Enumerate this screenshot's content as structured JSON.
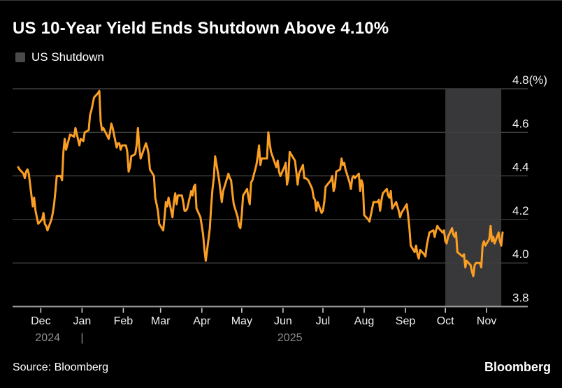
{
  "header": {
    "title": "US 10-Year Yield Ends Shutdown Above 4.10%"
  },
  "legend": {
    "items": [
      {
        "label": "US Shutdown",
        "swatch_color": "#4a4a4d"
      }
    ]
  },
  "footer": {
    "source": "Source: Bloomberg",
    "brand": "Bloomberg"
  },
  "colors": {
    "background": "#000000",
    "title_text": "#ffffff",
    "axis_label_text": "#f0f0f0",
    "year_label_text": "#8f8f8f",
    "gridline": "#3e3e3e",
    "axis_line": "#9a9a9a",
    "tick_mark": "#cccccc",
    "shutdown_band": "#38383b",
    "line": "#fb9e24",
    "footer_text": "#ffffff"
  },
  "chart_data": {
    "type": "line",
    "title": "US 10-Year Yield Ends Shutdown Above 4.10%",
    "xlabel": "",
    "ylabel": "",
    "ylabel_unit": "(%)",
    "ylim": [
      3.8,
      4.8
    ],
    "y_ticks": [
      3.8,
      4.0,
      4.2,
      4.4,
      4.6,
      4.8
    ],
    "y_tick_labels": [
      "3.8",
      "4.0",
      "4.2",
      "4.4",
      "4.6",
      "4.8(%)"
    ],
    "grid": true,
    "legend_position": "top-left",
    "x_domain": [
      "2024-11-14",
      "2025-11-13"
    ],
    "x_ticks": [
      {
        "label": "Dec",
        "date": "2024-12-01"
      },
      {
        "label": "Jan",
        "date": "2025-01-01"
      },
      {
        "label": "Feb",
        "date": "2025-02-01"
      },
      {
        "label": "Mar",
        "date": "2025-03-01"
      },
      {
        "label": "Apr",
        "date": "2025-04-01"
      },
      {
        "label": "May",
        "date": "2025-05-01"
      },
      {
        "label": "Jun",
        "date": "2025-06-01"
      },
      {
        "label": "Jul",
        "date": "2025-07-01"
      },
      {
        "label": "Aug",
        "date": "2025-08-01"
      },
      {
        "label": "Sep",
        "date": "2025-09-01"
      },
      {
        "label": "Oct",
        "date": "2025-10-01"
      },
      {
        "label": "Nov",
        "date": "2025-11-01"
      }
    ],
    "x_years": [
      {
        "label": "2024",
        "date": "2024-12-01"
      },
      {
        "label": "2025",
        "date": "2025-06-01"
      }
    ],
    "year_separator": {
      "label": "|",
      "date": "2025-01-01"
    },
    "shutdown_band": {
      "name": "US Shutdown",
      "start": "2025-10-01",
      "end": "2025-11-12"
    },
    "series": [
      {
        "name": "US 10-Year Yield",
        "color": "#fb9e24",
        "points": [
          [
            "2024-11-14",
            4.44
          ],
          [
            "2024-11-15",
            4.43
          ],
          [
            "2024-11-18",
            4.41
          ],
          [
            "2024-11-19",
            4.39
          ],
          [
            "2024-11-20",
            4.42
          ],
          [
            "2024-11-21",
            4.43
          ],
          [
            "2024-11-22",
            4.41
          ],
          [
            "2024-11-25",
            4.26
          ],
          [
            "2024-11-26",
            4.3
          ],
          [
            "2024-11-27",
            4.24
          ],
          [
            "2024-11-29",
            4.18
          ],
          [
            "2024-12-02",
            4.2
          ],
          [
            "2024-12-03",
            4.23
          ],
          [
            "2024-12-04",
            4.18
          ],
          [
            "2024-12-05",
            4.17
          ],
          [
            "2024-12-06",
            4.15
          ],
          [
            "2024-12-09",
            4.2
          ],
          [
            "2024-12-10",
            4.23
          ],
          [
            "2024-12-11",
            4.27
          ],
          [
            "2024-12-12",
            4.33
          ],
          [
            "2024-12-13",
            4.4
          ],
          [
            "2024-12-16",
            4.4
          ],
          [
            "2024-12-17",
            4.38
          ],
          [
            "2024-12-18",
            4.51
          ],
          [
            "2024-12-19",
            4.57
          ],
          [
            "2024-12-20",
            4.52
          ],
          [
            "2024-12-23",
            4.59
          ],
          [
            "2024-12-26",
            4.58
          ],
          [
            "2024-12-27",
            4.62
          ],
          [
            "2024-12-30",
            4.54
          ],
          [
            "2024-12-31",
            4.57
          ],
          [
            "2025-01-02",
            4.56
          ],
          [
            "2025-01-03",
            4.6
          ],
          [
            "2025-01-06",
            4.61
          ],
          [
            "2025-01-07",
            4.68
          ],
          [
            "2025-01-08",
            4.7
          ],
          [
            "2025-01-10",
            4.76
          ],
          [
            "2025-01-13",
            4.78
          ],
          [
            "2025-01-14",
            4.79
          ],
          [
            "2025-01-15",
            4.65
          ],
          [
            "2025-01-16",
            4.61
          ],
          [
            "2025-01-17",
            4.62
          ],
          [
            "2025-01-21",
            4.57
          ],
          [
            "2025-01-22",
            4.6
          ],
          [
            "2025-01-23",
            4.64
          ],
          [
            "2025-01-24",
            4.62
          ],
          [
            "2025-01-27",
            4.53
          ],
          [
            "2025-01-28",
            4.55
          ],
          [
            "2025-01-29",
            4.55
          ],
          [
            "2025-01-30",
            4.52
          ],
          [
            "2025-01-31",
            4.54
          ],
          [
            "2025-02-03",
            4.54
          ],
          [
            "2025-02-04",
            4.51
          ],
          [
            "2025-02-05",
            4.42
          ],
          [
            "2025-02-06",
            4.44
          ],
          [
            "2025-02-07",
            4.49
          ],
          [
            "2025-02-10",
            4.5
          ],
          [
            "2025-02-11",
            4.54
          ],
          [
            "2025-02-12",
            4.62
          ],
          [
            "2025-02-13",
            4.53
          ],
          [
            "2025-02-14",
            4.48
          ],
          [
            "2025-02-18",
            4.55
          ],
          [
            "2025-02-19",
            4.53
          ],
          [
            "2025-02-20",
            4.5
          ],
          [
            "2025-02-21",
            4.43
          ],
          [
            "2025-02-24",
            4.4
          ],
          [
            "2025-02-25",
            4.3
          ],
          [
            "2025-02-26",
            4.27
          ],
          [
            "2025-02-27",
            4.24
          ],
          [
            "2025-02-28",
            4.18
          ],
          [
            "2025-03-03",
            4.15
          ],
          [
            "2025-03-04",
            4.21
          ],
          [
            "2025-03-05",
            4.28
          ],
          [
            "2025-03-06",
            4.26
          ],
          [
            "2025-03-07",
            4.3
          ],
          [
            "2025-03-10",
            4.21
          ],
          [
            "2025-03-11",
            4.28
          ],
          [
            "2025-03-12",
            4.32
          ],
          [
            "2025-03-13",
            4.27
          ],
          [
            "2025-03-14",
            4.31
          ],
          [
            "2025-03-17",
            4.31
          ],
          [
            "2025-03-18",
            4.28
          ],
          [
            "2025-03-19",
            4.24
          ],
          [
            "2025-03-20",
            4.24
          ],
          [
            "2025-03-21",
            4.25
          ],
          [
            "2025-03-24",
            4.33
          ],
          [
            "2025-03-25",
            4.31
          ],
          [
            "2025-03-26",
            4.35
          ],
          [
            "2025-03-27",
            4.36
          ],
          [
            "2025-03-28",
            4.25
          ],
          [
            "2025-03-31",
            4.21
          ],
          [
            "2025-04-01",
            4.17
          ],
          [
            "2025-04-02",
            4.13
          ],
          [
            "2025-04-03",
            4.06
          ],
          [
            "2025-04-04",
            4.01
          ],
          [
            "2025-04-07",
            4.16
          ],
          [
            "2025-04-08",
            4.26
          ],
          [
            "2025-04-09",
            4.34
          ],
          [
            "2025-04-10",
            4.39
          ],
          [
            "2025-04-11",
            4.49
          ],
          [
            "2025-04-14",
            4.38
          ],
          [
            "2025-04-15",
            4.33
          ],
          [
            "2025-04-16",
            4.28
          ],
          [
            "2025-04-17",
            4.33
          ],
          [
            "2025-04-21",
            4.41
          ],
          [
            "2025-04-22",
            4.39
          ],
          [
            "2025-04-23",
            4.38
          ],
          [
            "2025-04-24",
            4.32
          ],
          [
            "2025-04-25",
            4.27
          ],
          [
            "2025-04-28",
            4.21
          ],
          [
            "2025-04-29",
            4.17
          ],
          [
            "2025-04-30",
            4.16
          ],
          [
            "2025-05-01",
            4.22
          ],
          [
            "2025-05-02",
            4.31
          ],
          [
            "2025-05-05",
            4.34
          ],
          [
            "2025-05-06",
            4.3
          ],
          [
            "2025-05-07",
            4.27
          ],
          [
            "2025-05-08",
            4.37
          ],
          [
            "2025-05-09",
            4.38
          ],
          [
            "2025-05-12",
            4.45
          ],
          [
            "2025-05-13",
            4.49
          ],
          [
            "2025-05-14",
            4.54
          ],
          [
            "2025-05-15",
            4.45
          ],
          [
            "2025-05-16",
            4.48
          ],
          [
            "2025-05-19",
            4.48
          ],
          [
            "2025-05-20",
            4.48
          ],
          [
            "2025-05-21",
            4.6
          ],
          [
            "2025-05-22",
            4.55
          ],
          [
            "2025-05-23",
            4.51
          ],
          [
            "2025-05-27",
            4.44
          ],
          [
            "2025-05-28",
            4.47
          ],
          [
            "2025-05-29",
            4.42
          ],
          [
            "2025-05-30",
            4.4
          ],
          [
            "2025-06-02",
            4.44
          ],
          [
            "2025-06-03",
            4.46
          ],
          [
            "2025-06-04",
            4.36
          ],
          [
            "2025-06-05",
            4.39
          ],
          [
            "2025-06-06",
            4.51
          ],
          [
            "2025-06-09",
            4.48
          ],
          [
            "2025-06-10",
            4.47
          ],
          [
            "2025-06-11",
            4.42
          ],
          [
            "2025-06-12",
            4.36
          ],
          [
            "2025-06-13",
            4.41
          ],
          [
            "2025-06-16",
            4.45
          ],
          [
            "2025-06-17",
            4.39
          ],
          [
            "2025-06-18",
            4.39
          ],
          [
            "2025-06-20",
            4.38
          ],
          [
            "2025-06-23",
            4.34
          ],
          [
            "2025-06-24",
            4.3
          ],
          [
            "2025-06-25",
            4.29
          ],
          [
            "2025-06-26",
            4.24
          ],
          [
            "2025-06-27",
            4.28
          ],
          [
            "2025-06-30",
            4.23
          ],
          [
            "2025-07-01",
            4.24
          ],
          [
            "2025-07-02",
            4.28
          ],
          [
            "2025-07-03",
            4.35
          ],
          [
            "2025-07-07",
            4.38
          ],
          [
            "2025-07-08",
            4.4
          ],
          [
            "2025-07-09",
            4.33
          ],
          [
            "2025-07-10",
            4.35
          ],
          [
            "2025-07-11",
            4.42
          ],
          [
            "2025-07-14",
            4.43
          ],
          [
            "2025-07-15",
            4.48
          ],
          [
            "2025-07-16",
            4.45
          ],
          [
            "2025-07-17",
            4.46
          ],
          [
            "2025-07-18",
            4.43
          ],
          [
            "2025-07-21",
            4.37
          ],
          [
            "2025-07-22",
            4.34
          ],
          [
            "2025-07-23",
            4.39
          ],
          [
            "2025-07-24",
            4.4
          ],
          [
            "2025-07-25",
            4.39
          ],
          [
            "2025-07-28",
            4.41
          ],
          [
            "2025-07-29",
            4.33
          ],
          [
            "2025-07-30",
            4.38
          ],
          [
            "2025-07-31",
            4.36
          ],
          [
            "2025-08-01",
            4.22
          ],
          [
            "2025-08-04",
            4.2
          ],
          [
            "2025-08-05",
            4.19
          ],
          [
            "2025-08-06",
            4.22
          ],
          [
            "2025-08-07",
            4.25
          ],
          [
            "2025-08-08",
            4.28
          ],
          [
            "2025-08-11",
            4.28
          ],
          [
            "2025-08-12",
            4.29
          ],
          [
            "2025-08-13",
            4.24
          ],
          [
            "2025-08-14",
            4.29
          ],
          [
            "2025-08-15",
            4.32
          ],
          [
            "2025-08-18",
            4.34
          ],
          [
            "2025-08-19",
            4.31
          ],
          [
            "2025-08-20",
            4.3
          ],
          [
            "2025-08-21",
            4.33
          ],
          [
            "2025-08-22",
            4.25
          ],
          [
            "2025-08-25",
            4.28
          ],
          [
            "2025-08-26",
            4.26
          ],
          [
            "2025-08-27",
            4.24
          ],
          [
            "2025-08-28",
            4.21
          ],
          [
            "2025-08-29",
            4.23
          ],
          [
            "2025-09-02",
            4.27
          ],
          [
            "2025-09-03",
            4.22
          ],
          [
            "2025-09-04",
            4.16
          ],
          [
            "2025-09-05",
            4.08
          ],
          [
            "2025-09-08",
            4.05
          ],
          [
            "2025-09-09",
            4.08
          ],
          [
            "2025-09-10",
            4.04
          ],
          [
            "2025-09-11",
            4.02
          ],
          [
            "2025-09-12",
            4.06
          ],
          [
            "2025-09-15",
            4.04
          ],
          [
            "2025-09-16",
            4.03
          ],
          [
            "2025-09-17",
            4.08
          ],
          [
            "2025-09-18",
            4.11
          ],
          [
            "2025-09-19",
            4.14
          ],
          [
            "2025-09-22",
            4.15
          ],
          [
            "2025-09-23",
            4.12
          ],
          [
            "2025-09-24",
            4.15
          ],
          [
            "2025-09-25",
            4.17
          ],
          [
            "2025-09-26",
            4.16
          ],
          [
            "2025-09-29",
            4.14
          ],
          [
            "2025-09-30",
            4.15
          ],
          [
            "2025-10-01",
            4.1
          ],
          [
            "2025-10-02",
            4.09
          ],
          [
            "2025-10-03",
            4.12
          ],
          [
            "2025-10-06",
            4.16
          ],
          [
            "2025-10-07",
            4.13
          ],
          [
            "2025-10-08",
            4.12
          ],
          [
            "2025-10-09",
            4.14
          ],
          [
            "2025-10-10",
            4.05
          ],
          [
            "2025-10-14",
            4.03
          ],
          [
            "2025-10-15",
            4.04
          ],
          [
            "2025-10-16",
            3.98
          ],
          [
            "2025-10-17",
            4.01
          ],
          [
            "2025-10-20",
            3.99
          ],
          [
            "2025-10-21",
            3.96
          ],
          [
            "2025-10-22",
            3.94
          ],
          [
            "2025-10-23",
            3.99
          ],
          [
            "2025-10-24",
            4.0
          ],
          [
            "2025-10-27",
            4.0
          ],
          [
            "2025-10-28",
            3.98
          ],
          [
            "2025-10-29",
            4.08
          ],
          [
            "2025-10-30",
            4.1
          ],
          [
            "2025-10-31",
            4.08
          ],
          [
            "2025-11-03",
            4.11
          ],
          [
            "2025-11-04",
            4.17
          ],
          [
            "2025-11-05",
            4.1
          ],
          [
            "2025-11-06",
            4.12
          ],
          [
            "2025-11-07",
            4.09
          ],
          [
            "2025-11-10",
            4.14
          ],
          [
            "2025-11-11",
            4.1
          ],
          [
            "2025-11-12",
            4.08
          ],
          [
            "2025-11-13",
            4.14
          ]
        ]
      }
    ]
  }
}
